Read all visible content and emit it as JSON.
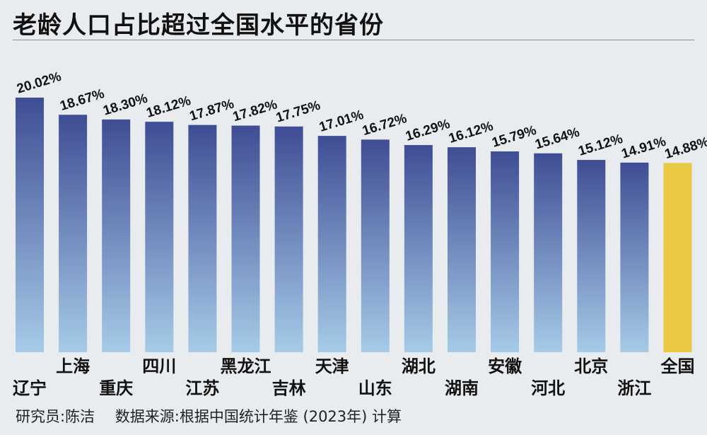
{
  "title": "老龄人口占比超过全国水平的省份",
  "footer": {
    "researcher": "研究员:陈洁",
    "source": "数据来源:根据中国统计年鉴 (2023年) 计算"
  },
  "colors": {
    "bar_top": "#3f4d94",
    "bar_bottom": "#a6cbe8",
    "highlight": "#e9c944",
    "background": "#e9ecef"
  },
  "chart_data": {
    "type": "bar",
    "title": "老龄人口占比超过全国水平的省份",
    "categories": [
      "辽宁",
      "上海",
      "重庆",
      "四川",
      "江苏",
      "黑龙江",
      "吉林",
      "天津",
      "山东",
      "湖北",
      "湖南",
      "安徽",
      "河北",
      "北京",
      "浙江",
      "全国"
    ],
    "values": [
      20.02,
      18.67,
      18.3,
      18.12,
      17.87,
      17.82,
      17.75,
      17.01,
      16.72,
      16.29,
      16.12,
      15.79,
      15.64,
      15.12,
      14.91,
      14.88
    ],
    "value_labels": [
      "20.02%",
      "18.67%",
      "18.30%",
      "18.12%",
      "17.87%",
      "17.82%",
      "17.75%",
      "17.01%",
      "16.72%",
      "16.29%",
      "16.12%",
      "15.79%",
      "15.64%",
      "15.12%",
      "14.91%",
      "14.88%"
    ],
    "unit": "%",
    "highlight_category": "全国",
    "xlabel": "",
    "ylabel": "",
    "ylim": [
      0,
      20.02
    ],
    "grid": false,
    "legend": "none"
  }
}
